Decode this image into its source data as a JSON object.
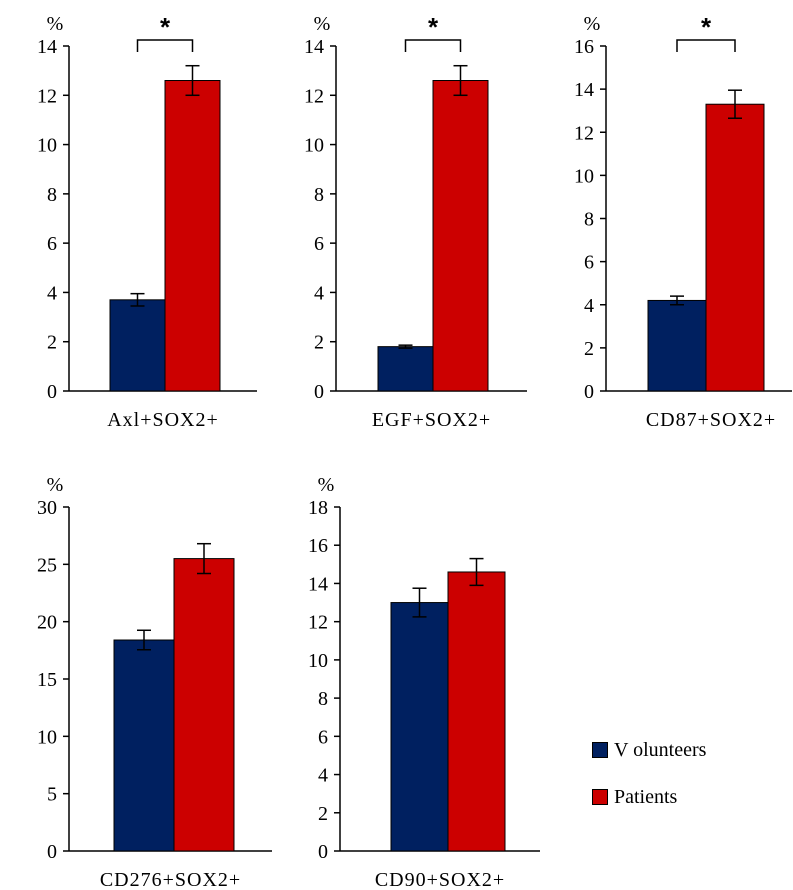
{
  "chart_data": [
    {
      "type": "bar",
      "ylabel": "%",
      "xlabel": "Axl+SOX2+",
      "ylim": [
        0,
        14
      ],
      "yticks": [
        0,
        2,
        4,
        6,
        8,
        10,
        12,
        14
      ],
      "values": [
        3.7,
        12.6
      ],
      "errors": [
        0.25,
        0.6
      ],
      "significance": "*"
    },
    {
      "type": "bar",
      "ylabel": "%",
      "xlabel": "EGF+SOX2+",
      "ylim": [
        0,
        14
      ],
      "yticks": [
        0,
        2,
        4,
        6,
        8,
        10,
        12,
        14
      ],
      "values": [
        1.8,
        12.6
      ],
      "errors": [
        0.06,
        0.6
      ],
      "significance": "*"
    },
    {
      "type": "bar",
      "ylabel": "%",
      "xlabel": "CD87+SOX2+",
      "ylim": [
        0,
        16
      ],
      "yticks": [
        0,
        2,
        4,
        6,
        8,
        10,
        12,
        14,
        16
      ],
      "values": [
        4.2,
        13.3
      ],
      "errors": [
        0.2,
        0.65
      ],
      "significance": "*"
    },
    {
      "type": "bar",
      "ylabel": "%",
      "xlabel": "CD276+SOX2+",
      "ylim": [
        0,
        30
      ],
      "yticks": [
        0,
        5,
        10,
        15,
        20,
        25,
        30
      ],
      "values": [
        18.4,
        25.5
      ],
      "errors": [
        0.85,
        1.3
      ],
      "significance": ""
    },
    {
      "type": "bar",
      "ylabel": "%",
      "xlabel": "CD90+SOX2+",
      "ylim": [
        0,
        18
      ],
      "yticks": [
        0,
        2,
        4,
        6,
        8,
        10,
        12,
        14,
        16,
        18
      ],
      "values": [
        13.0,
        14.6
      ],
      "errors": [
        0.75,
        0.7
      ],
      "significance": ""
    }
  ],
  "legend": {
    "items": [
      {
        "label": "V olunteers",
        "color": "#002060"
      },
      {
        "label": "Patients",
        "color": "#cc0000"
      }
    ]
  }
}
